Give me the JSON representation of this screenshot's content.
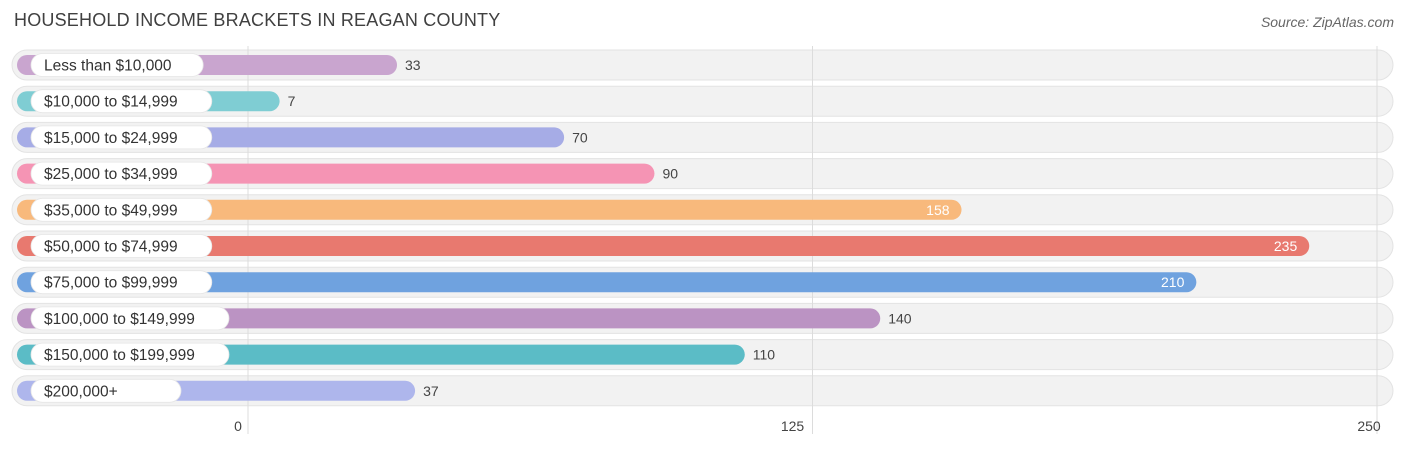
{
  "title": "HOUSEHOLD INCOME BRACKETS IN REAGAN COUNTY",
  "source": "Source: ZipAtlas.com",
  "chart_data": {
    "type": "bar",
    "orientation": "horizontal",
    "categories": [
      "Less than $10,000",
      "$10,000 to $14,999",
      "$15,000 to $24,999",
      "$25,000 to $34,999",
      "$35,000 to $49,999",
      "$50,000 to $74,999",
      "$75,000 to $99,999",
      "$100,000 to $149,999",
      "$150,000 to $199,999",
      "$200,000+"
    ],
    "values": [
      33,
      7,
      70,
      90,
      158,
      235,
      210,
      140,
      110,
      37
    ],
    "colors": [
      "#c9a5cf",
      "#7fcdd3",
      "#a6ace6",
      "#f594b4",
      "#f8b97c",
      "#e8796f",
      "#6fa2df",
      "#bb93c3",
      "#5bbcc6",
      "#aeb6ec"
    ],
    "xlim": [
      0,
      250
    ],
    "xticks": [
      0,
      125,
      250
    ],
    "grid": true
  }
}
